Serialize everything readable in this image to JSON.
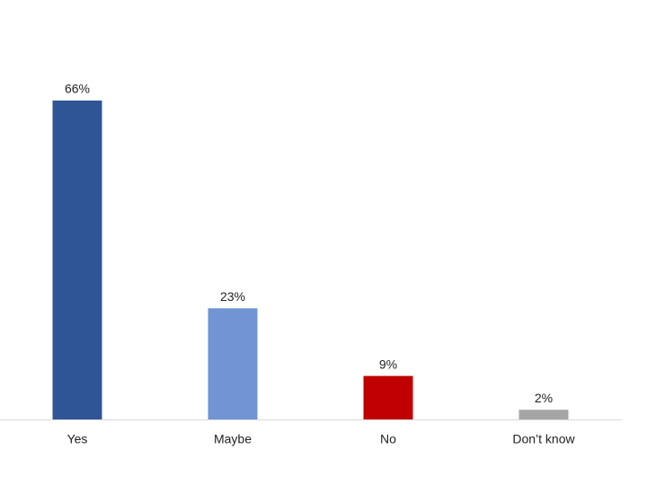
{
  "chart_data": {
    "type": "bar",
    "categories": [
      "Yes",
      "Maybe",
      "No",
      "Don’t know"
    ],
    "values": [
      66,
      23,
      9,
      2
    ],
    "value_labels": [
      "66%",
      "23%",
      "9%",
      "2%"
    ],
    "colors": [
      "#2f5597",
      "#7094d4",
      "#c00000",
      "#a5a5a5"
    ]
  }
}
